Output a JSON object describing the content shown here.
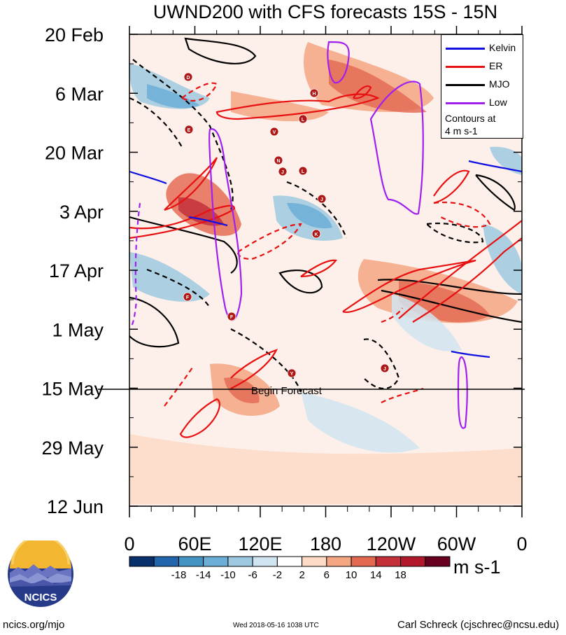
{
  "header": {
    "title": "UWND200 with CFS forecasts  15S - 15N"
  },
  "footer": {
    "site": "ncics.org/mjo",
    "timestamp": "Wed 2018-05-16 1038 UTC",
    "author": "Carl Schreck (cjschrec@ncsu.edu)"
  },
  "logo": {
    "text": "NCICS"
  },
  "legend": {
    "items": [
      {
        "label": "Kelvin",
        "color": "#1010e0"
      },
      {
        "label": "ER",
        "color": "#e81010"
      },
      {
        "label": "MJO",
        "color": "#000000"
      },
      {
        "label": "Low",
        "color": "#a020f0"
      }
    ],
    "note_line1": "Contours at",
    "note_line2": "4 m s-1"
  },
  "colorbar": {
    "units": "m s-1",
    "colors": [
      "#08306b",
      "#2166ac",
      "#4393c3",
      "#6baed6",
      "#9ecae1",
      "#d1e5f0",
      "#ffffff",
      "#fddbc7",
      "#f4a582",
      "#e36a50",
      "#c3303a",
      "#b2182b",
      "#67001f"
    ],
    "tick_labels": [
      "-18",
      "-14",
      "-10",
      "-6",
      "-2",
      "2",
      "6",
      "10",
      "14",
      "18"
    ]
  },
  "annotation": {
    "begin_forecast": "Begin Forecast"
  },
  "chart_data": {
    "type": "heatmap",
    "title": "UWND200 with CFS forecasts  15S - 15N",
    "xlabel": "",
    "ylabel": "",
    "x_tick_labels": [
      "0",
      "60E",
      "120E",
      "180",
      "120W",
      "60W",
      "0"
    ],
    "x_tick_values_deg_east": [
      0,
      60,
      120,
      180,
      240,
      300,
      360
    ],
    "xlim_deg_east": [
      0,
      360
    ],
    "y_tick_labels": [
      "20 Feb",
      "6 Mar",
      "20 Mar",
      "3 Apr",
      "17 Apr",
      "1 May",
      "15 May",
      "29 May",
      "12 Jun"
    ],
    "y_axis_direction": "time increases downward",
    "forecast_start": "15 May",
    "units": "m s-1",
    "contour_interval": "4 m s-1",
    "contour_series": [
      "Kelvin",
      "ER",
      "MJO",
      "Low"
    ],
    "storm_symbol_letters": [
      "D",
      "E",
      "H",
      "L",
      "V",
      "N",
      "J",
      "L",
      "J",
      "K",
      "F",
      "F",
      "Y",
      "J"
    ]
  }
}
